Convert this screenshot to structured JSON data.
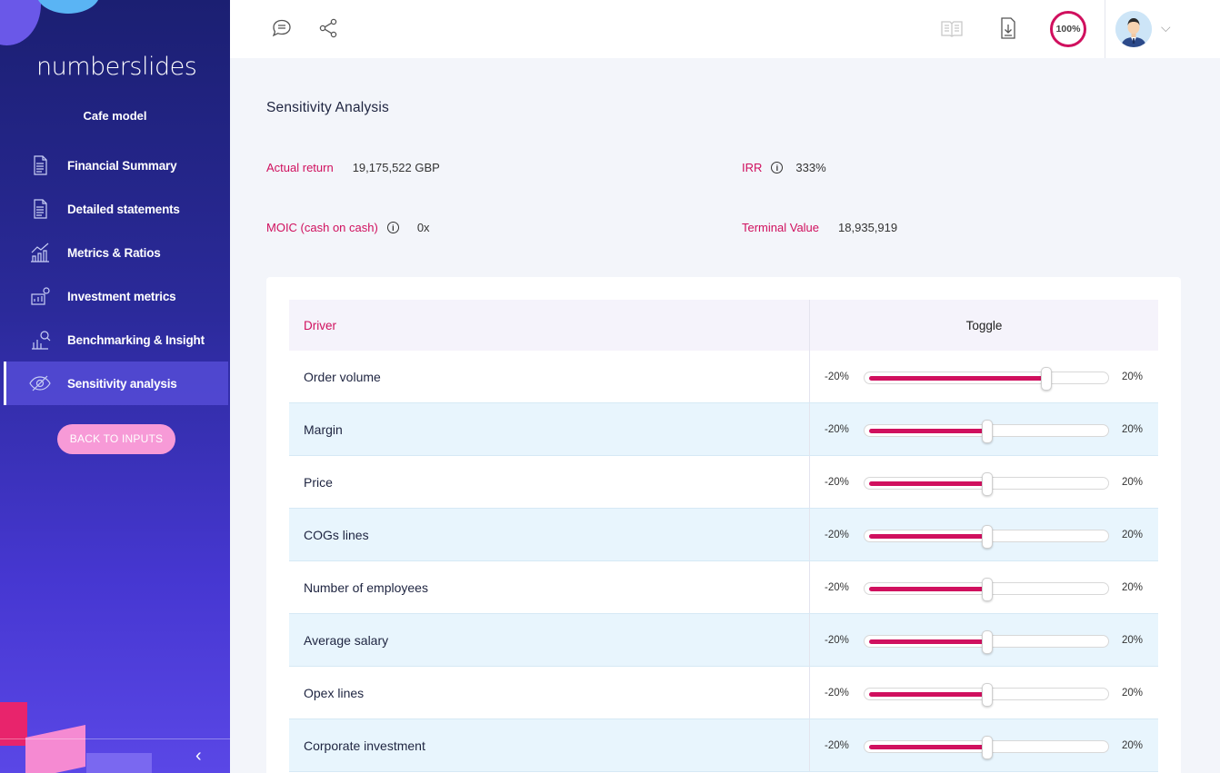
{
  "app": {
    "logo": "numberslides",
    "model_name": "Cafe model"
  },
  "sidebar": {
    "items": [
      {
        "label": "Financial Summary",
        "icon": "document-icon"
      },
      {
        "label": "Detailed statements",
        "icon": "document-icon"
      },
      {
        "label": "Metrics & Ratios",
        "icon": "chart-icon"
      },
      {
        "label": "Investment metrics",
        "icon": "money-chart-icon"
      },
      {
        "label": "Benchmarking & Insight",
        "icon": "benchmark-icon"
      },
      {
        "label": "Sensitivity analysis",
        "icon": "eye-icon",
        "active": true
      }
    ],
    "back_button": "BACK TO INPUTS",
    "collapse": "‹"
  },
  "topbar": {
    "completion": "100%",
    "icons": [
      "comment-icon",
      "share-icon",
      "book-icon",
      "download-icon"
    ]
  },
  "page": {
    "title": "Sensitivity Analysis",
    "metrics": {
      "actual_return": {
        "label": "Actual return",
        "value": "19,175,522 GBP"
      },
      "irr": {
        "label": "IRR",
        "value": "333%"
      },
      "moic": {
        "label": "MOIC (cash on cash)",
        "value": "0x"
      },
      "terminal_value": {
        "label": "Terminal Value",
        "value": "18,935,919"
      }
    },
    "table": {
      "headers": {
        "driver": "Driver",
        "toggle": "Toggle"
      },
      "range_min": "-20%",
      "range_max": "20%",
      "rows": [
        {
          "driver": "Order volume",
          "level": 0.75
        },
        {
          "driver": "Margin",
          "level": 0.5
        },
        {
          "driver": "Price",
          "level": 0.5
        },
        {
          "driver": "COGs lines",
          "level": 0.5
        },
        {
          "driver": "Number of employees",
          "level": 0.5
        },
        {
          "driver": "Average salary",
          "level": 0.5
        },
        {
          "driver": "Opex lines",
          "level": 0.5
        },
        {
          "driver": "Corporate investment",
          "level": 0.5
        }
      ]
    }
  },
  "colors": {
    "accent": "#d0105e",
    "sidebar": "#2b2a9a",
    "row_alt": "#e8f5fd"
  }
}
